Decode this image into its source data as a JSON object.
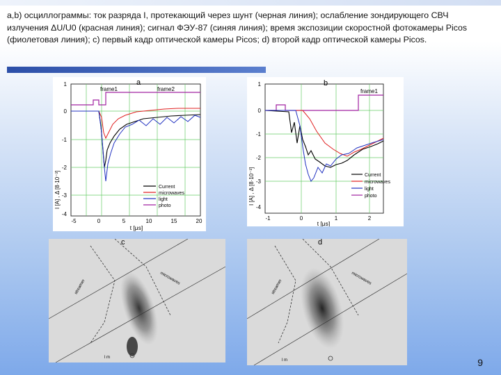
{
  "slide": {
    "caption": "a,b) осциллограммы: ток разряда I, протекающий через шунт (черная линия); ослабление зондирующего СВЧ излучения ΔU/U0 (красная линия); сигнал ФЭУ-87 (синяя линия);  время экспозиции скоростной фотокамеры Picos (фиолетовая линия); c) первый кадр оптической камеры Picos; d) второй кадр оптической камеры Picos.",
    "page_number": "9"
  },
  "panel_a": {
    "label": "a",
    "frame1": "frame1",
    "frame2": "frame2",
    "ylabel": "I [A] ,  Δ [8·10⁻³]",
    "xlabel": "t [μs]",
    "yticks": [
      "1",
      "0",
      "-1",
      "-2",
      "-3",
      "-4"
    ],
    "xticks": [
      "-5",
      "0",
      "5",
      "10",
      "15",
      "20"
    ],
    "legend": [
      "Current",
      "microwaves",
      "light",
      "photo"
    ]
  },
  "panel_b": {
    "label": "b",
    "frame1": "frame1",
    "ylabel": "I [A] ,  Δ [8·10⁻³]",
    "xlabel": "t [μs]",
    "yticks": [
      "1",
      "0",
      "-1",
      "-2",
      "-3",
      "-4"
    ],
    "xticks": [
      "-1",
      "0",
      "1",
      "2"
    ],
    "legend": [
      "Current",
      "microwaves",
      "light",
      "photo"
    ]
  },
  "photo_c": {
    "label": "c",
    "stream_label": "streamer",
    "wave_label": "microwaves",
    "ground_label": "l m"
  },
  "photo_d": {
    "label": "d",
    "stream_label": "streamer",
    "wave_label": "microwaves",
    "ground_label": "l m"
  },
  "colors": {
    "current": "#000000",
    "microwaves": "#e02020",
    "light": "#2030c0",
    "photo": "#a020a0",
    "grid": "#66cc66"
  }
}
